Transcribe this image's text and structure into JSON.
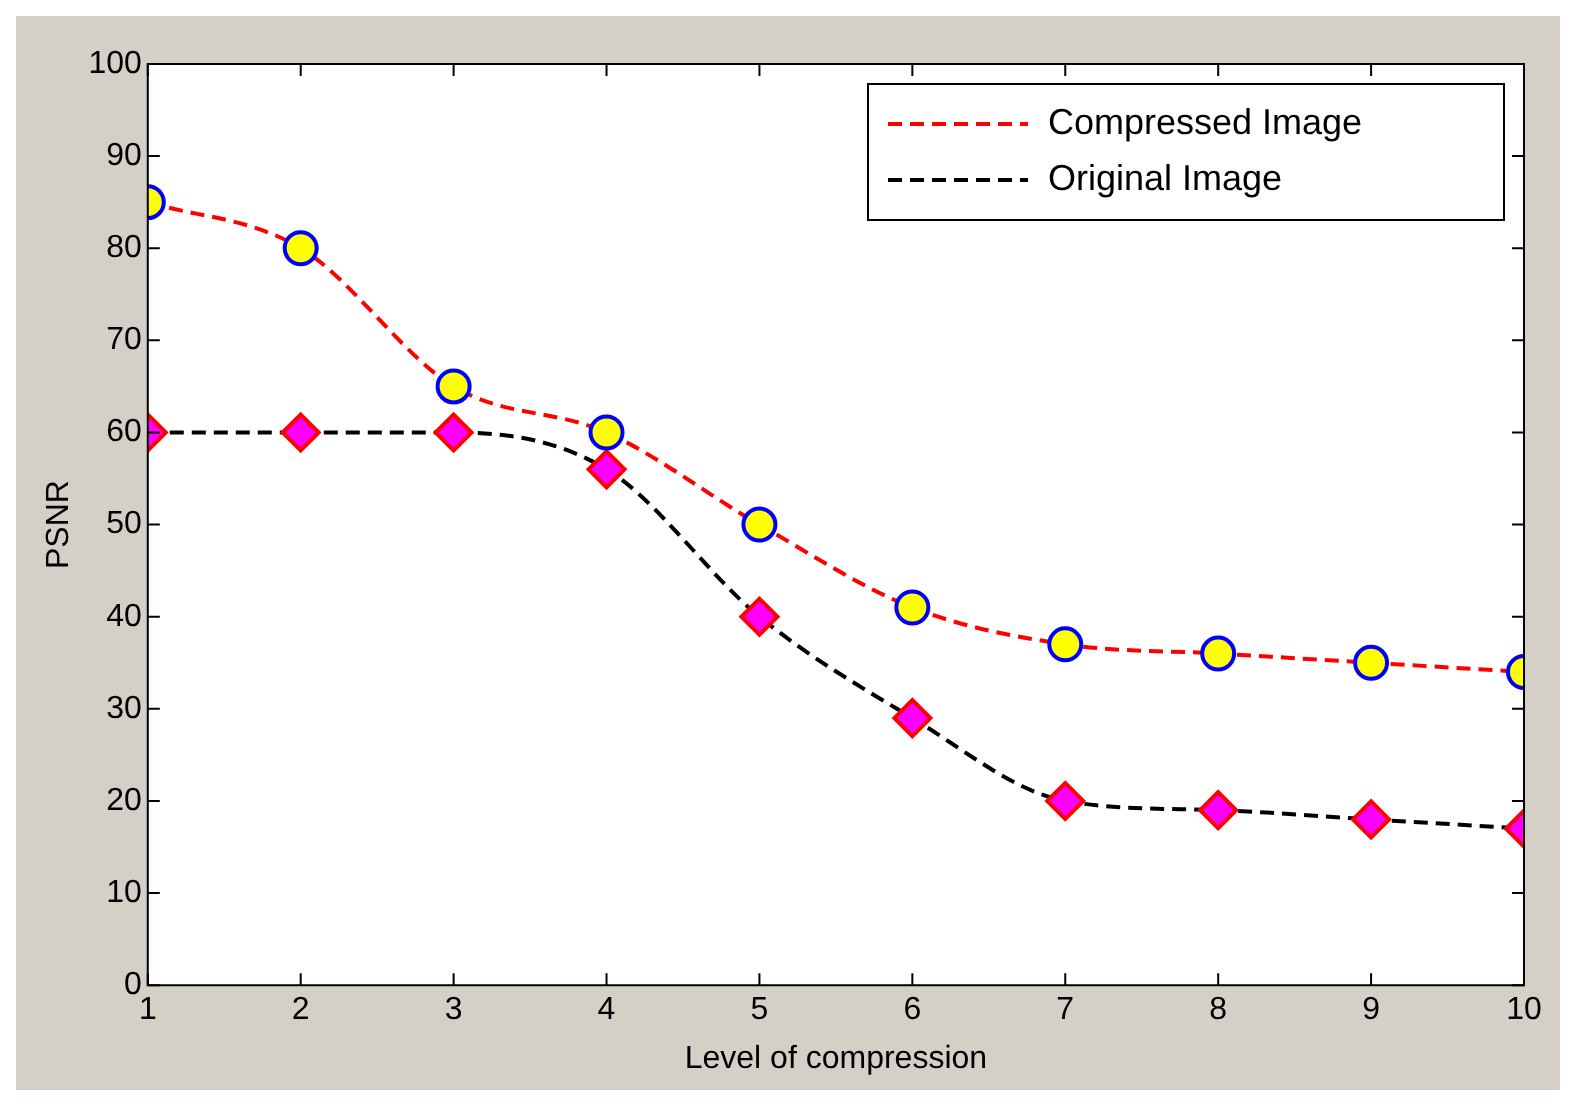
{
  "chart_data": {
    "type": "line",
    "xlabel": "Level of compression",
    "ylabel": "PSNR",
    "x": [
      1,
      2,
      3,
      4,
      5,
      6,
      7,
      8,
      9,
      10
    ],
    "series": [
      {
        "name": "Compressed Image",
        "color": "#ff0000",
        "marker": "circle",
        "values": [
          85,
          80,
          65,
          60,
          50,
          41,
          37,
          36,
          35,
          34
        ]
      },
      {
        "name": "Original Image",
        "color": "#000000",
        "marker": "diamond",
        "values": [
          60,
          60,
          60,
          56,
          40,
          29,
          20,
          19,
          18,
          17
        ]
      }
    ],
    "xlim": [
      1,
      10
    ],
    "xticks": [
      1,
      2,
      3,
      4,
      5,
      6,
      7,
      8,
      9,
      10
    ],
    "ylim": [
      0,
      100
    ],
    "yticks": [
      0,
      10,
      20,
      30,
      40,
      50,
      60,
      70,
      80,
      90,
      100
    ],
    "grid": false,
    "legend": "top right",
    "line_style": "dashed"
  }
}
